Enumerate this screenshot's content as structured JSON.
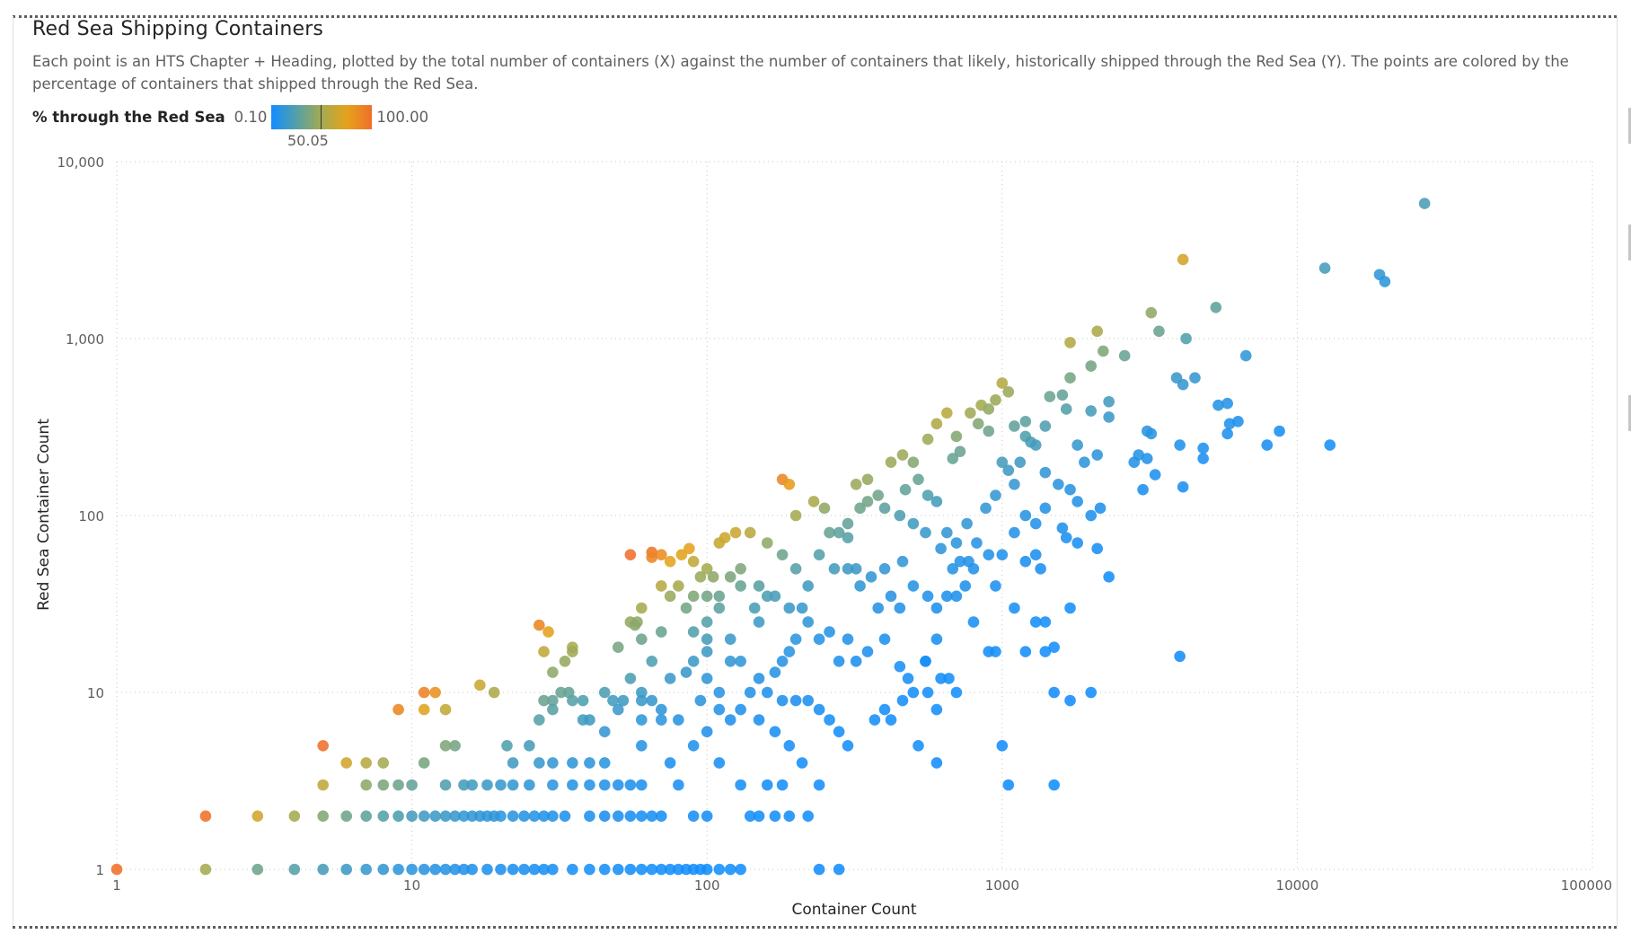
{
  "header": {
    "title": "Red Sea Shipping Containers",
    "subtitle": "Each point is an HTS Chapter + Heading, plotted by the total number of containers (X) against the number of containers that likely, historically shipped through the Red Sea (Y). The points are colored by the percentage of containers that shipped through the Red Sea."
  },
  "legend": {
    "title": "% through the Red Sea",
    "min": "0.10",
    "max": "100.00",
    "mid": "50.05"
  },
  "colors": {
    "low": "#118dff",
    "mid": "#a4ab50",
    "high": "#ef6f2a"
  },
  "chart_data": {
    "type": "scatter",
    "title": "Red Sea Shipping Containers",
    "xlabel": "Container Count",
    "ylabel": "Red Sea Container Count",
    "xscale": "log",
    "yscale": "log",
    "xlim": [
      1,
      100000
    ],
    "ylim": [
      1,
      10000
    ],
    "x_ticks": [
      {
        "value": 1,
        "label": "1"
      },
      {
        "value": 10,
        "label": "10"
      },
      {
        "value": 100,
        "label": "100"
      },
      {
        "value": 1000,
        "label": "1000"
      },
      {
        "value": 10000,
        "label": "10000"
      },
      {
        "value": 100000,
        "label": "100000"
      }
    ],
    "y_ticks": [
      {
        "value": 1,
        "label": "1"
      },
      {
        "value": 10,
        "label": "10"
      },
      {
        "value": 100,
        "label": "100"
      },
      {
        "value": 1000,
        "label": "1,000"
      },
      {
        "value": 10000,
        "label": "10,000"
      }
    ],
    "grid": true,
    "color_measure": "% through the Red Sea",
    "color_range": [
      0.1,
      100
    ],
    "points": [
      [
        27000,
        5800
      ],
      [
        12400,
        2500
      ],
      [
        19000,
        2300
      ],
      [
        19800,
        2100
      ],
      [
        4100,
        2800
      ],
      [
        3200,
        1400
      ],
      [
        5300,
        1500
      ],
      [
        3400,
        1100
      ],
      [
        4200,
        1000
      ],
      [
        2100,
        1100
      ],
      [
        1700,
        950
      ],
      [
        2200,
        850
      ],
      [
        2600,
        800
      ],
      [
        2000,
        700
      ],
      [
        6700,
        800
      ],
      [
        3900,
        600
      ],
      [
        4500,
        600
      ],
      [
        4100,
        550
      ],
      [
        5400,
        420
      ],
      [
        5800,
        430
      ],
      [
        5900,
        330
      ],
      [
        6300,
        340
      ],
      [
        5800,
        290
      ],
      [
        7900,
        250
      ],
      [
        8700,
        300
      ],
      [
        12900,
        250
      ],
      [
        1000,
        560
      ],
      [
        1050,
        500
      ],
      [
        950,
        450
      ],
      [
        1700,
        600
      ],
      [
        1600,
        480
      ],
      [
        1450,
        470
      ],
      [
        900,
        400
      ],
      [
        830,
        330
      ],
      [
        1100,
        320
      ],
      [
        1200,
        340
      ],
      [
        1650,
        400
      ],
      [
        2300,
        440
      ],
      [
        2000,
        390
      ],
      [
        2300,
        360
      ],
      [
        1200,
        280
      ],
      [
        1250,
        260
      ],
      [
        1300,
        250
      ],
      [
        1400,
        320
      ],
      [
        3100,
        300
      ],
      [
        3200,
        290
      ],
      [
        2800,
        200
      ],
      [
        2900,
        220
      ],
      [
        3100,
        210
      ],
      [
        3300,
        170
      ],
      [
        4000,
        250
      ],
      [
        4800,
        240
      ],
      [
        4800,
        210
      ],
      [
        3000,
        140
      ],
      [
        4100,
        145
      ],
      [
        1000,
        200
      ],
      [
        1050,
        180
      ],
      [
        1100,
        150
      ],
      [
        1150,
        200
      ],
      [
        1400,
        175
      ],
      [
        1550,
        150
      ],
      [
        1800,
        250
      ],
      [
        1900,
        200
      ],
      [
        2100,
        220
      ],
      [
        1700,
        140
      ],
      [
        1800,
        120
      ],
      [
        2000,
        100
      ],
      [
        2150,
        110
      ],
      [
        1100,
        80
      ],
      [
        1200,
        100
      ],
      [
        1300,
        90
      ],
      [
        1400,
        110
      ],
      [
        1600,
        85
      ],
      [
        1650,
        75
      ],
      [
        1800,
        70
      ],
      [
        2100,
        65
      ],
      [
        2300,
        45
      ],
      [
        4000,
        16
      ],
      [
        1000,
        60
      ],
      [
        1200,
        55
      ],
      [
        1300,
        60
      ],
      [
        1350,
        50
      ],
      [
        950,
        40
      ],
      [
        1100,
        30
      ],
      [
        1300,
        25
      ],
      [
        1400,
        25
      ],
      [
        1500,
        18
      ],
      [
        1700,
        30
      ],
      [
        1200,
        17
      ],
      [
        1400,
        17
      ],
      [
        800,
        25
      ],
      [
        600,
        20
      ],
      [
        900,
        17
      ],
      [
        950,
        17
      ],
      [
        550,
        15
      ],
      [
        1500,
        10
      ],
      [
        1700,
        9
      ],
      [
        2000,
        10
      ],
      [
        1000,
        5
      ],
      [
        1050,
        3
      ],
      [
        1500,
        3
      ],
      [
        650,
        380
      ],
      [
        600,
        330
      ],
      [
        700,
        280
      ],
      [
        780,
        380
      ],
      [
        850,
        420
      ],
      [
        900,
        300
      ],
      [
        560,
        270
      ],
      [
        720,
        230
      ],
      [
        680,
        210
      ],
      [
        460,
        220
      ],
      [
        420,
        200
      ],
      [
        500,
        200
      ],
      [
        350,
        160
      ],
      [
        320,
        150
      ],
      [
        380,
        130
      ],
      [
        470,
        140
      ],
      [
        520,
        160
      ],
      [
        560,
        130
      ],
      [
        400,
        110
      ],
      [
        450,
        100
      ],
      [
        300,
        90
      ],
      [
        330,
        110
      ],
      [
        350,
        120
      ],
      [
        500,
        90
      ],
      [
        600,
        120
      ],
      [
        650,
        80
      ],
      [
        700,
        70
      ],
      [
        550,
        80
      ],
      [
        620,
        65
      ],
      [
        760,
        90
      ],
      [
        820,
        70
      ],
      [
        900,
        60
      ],
      [
        880,
        110
      ],
      [
        950,
        130
      ],
      [
        680,
        50
      ],
      [
        720,
        55
      ],
      [
        770,
        55
      ],
      [
        800,
        50
      ],
      [
        460,
        55
      ],
      [
        400,
        50
      ],
      [
        360,
        45
      ],
      [
        300,
        50
      ],
      [
        330,
        40
      ],
      [
        380,
        30
      ],
      [
        420,
        35
      ],
      [
        450,
        30
      ],
      [
        500,
        40
      ],
      [
        560,
        35
      ],
      [
        600,
        30
      ],
      [
        650,
        35
      ],
      [
        700,
        35
      ],
      [
        750,
        40
      ],
      [
        300,
        20
      ],
      [
        350,
        17
      ],
      [
        280,
        15
      ],
      [
        320,
        15
      ],
      [
        400,
        20
      ],
      [
        450,
        14
      ],
      [
        480,
        12
      ],
      [
        550,
        15
      ],
      [
        620,
        12
      ],
      [
        660,
        12
      ],
      [
        700,
        10
      ],
      [
        400,
        8
      ],
      [
        460,
        9
      ],
      [
        500,
        10
      ],
      [
        560,
        10
      ],
      [
        600,
        8
      ],
      [
        370,
        7
      ],
      [
        420,
        7
      ],
      [
        520,
        5
      ],
      [
        600,
        4
      ],
      [
        180,
        160
      ],
      [
        190,
        150
      ],
      [
        200,
        100
      ],
      [
        230,
        120
      ],
      [
        250,
        110
      ],
      [
        260,
        80
      ],
      [
        280,
        80
      ],
      [
        300,
        75
      ],
      [
        320,
        50
      ],
      [
        270,
        50
      ],
      [
        240,
        60
      ],
      [
        220,
        40
      ],
      [
        200,
        50
      ],
      [
        180,
        60
      ],
      [
        160,
        70
      ],
      [
        140,
        80
      ],
      [
        130,
        50
      ],
      [
        150,
        40
      ],
      [
        170,
        35
      ],
      [
        190,
        30
      ],
      [
        210,
        30
      ],
      [
        220,
        25
      ],
      [
        240,
        20
      ],
      [
        260,
        22
      ],
      [
        200,
        20
      ],
      [
        190,
        17
      ],
      [
        180,
        15
      ],
      [
        170,
        13
      ],
      [
        150,
        12
      ],
      [
        140,
        10
      ],
      [
        160,
        10
      ],
      [
        180,
        9
      ],
      [
        200,
        9
      ],
      [
        220,
        9
      ],
      [
        240,
        8
      ],
      [
        260,
        7
      ],
      [
        280,
        6
      ],
      [
        300,
        5
      ],
      [
        130,
        8
      ],
      [
        150,
        7
      ],
      [
        170,
        6
      ],
      [
        190,
        5
      ],
      [
        210,
        4
      ],
      [
        240,
        3
      ],
      [
        180,
        3
      ],
      [
        160,
        3
      ],
      [
        140,
        2
      ],
      [
        150,
        2
      ],
      [
        170,
        2
      ],
      [
        190,
        2
      ],
      [
        220,
        2
      ],
      [
        240,
        1
      ],
      [
        280,
        1
      ],
      [
        150,
        25
      ],
      [
        145,
        30
      ],
      [
        160,
        35
      ],
      [
        130,
        40
      ],
      [
        120,
        45
      ],
      [
        110,
        35
      ],
      [
        110,
        30
      ],
      [
        100,
        25
      ],
      [
        90,
        22
      ],
      [
        100,
        20
      ],
      [
        120,
        20
      ],
      [
        130,
        15
      ],
      [
        120,
        15
      ],
      [
        100,
        17
      ],
      [
        90,
        15
      ],
      [
        85,
        13
      ],
      [
        100,
        12
      ],
      [
        110,
        10
      ],
      [
        95,
        9
      ],
      [
        110,
        8
      ],
      [
        120,
        7
      ],
      [
        100,
        6
      ],
      [
        80,
        7
      ],
      [
        70,
        8
      ],
      [
        65,
        9
      ],
      [
        60,
        10
      ],
      [
        90,
        5
      ],
      [
        110,
        4
      ],
      [
        130,
        3
      ],
      [
        80,
        3
      ],
      [
        70,
        2
      ],
      [
        90,
        2
      ],
      [
        100,
        2
      ],
      [
        110,
        1
      ],
      [
        120,
        1
      ],
      [
        130,
        1
      ],
      [
        50,
        18
      ],
      [
        60,
        20
      ],
      [
        55,
        25
      ],
      [
        70,
        22
      ],
      [
        65,
        15
      ],
      [
        75,
        12
      ],
      [
        55,
        12
      ],
      [
        45,
        10
      ],
      [
        48,
        9
      ],
      [
        52,
        9
      ],
      [
        60,
        9
      ],
      [
        50,
        8
      ],
      [
        60,
        7
      ],
      [
        70,
        7
      ],
      [
        40,
        7
      ],
      [
        45,
        6
      ],
      [
        60,
        5
      ],
      [
        75,
        4
      ],
      [
        45,
        4
      ],
      [
        40,
        4
      ],
      [
        50,
        3
      ],
      [
        55,
        3
      ],
      [
        60,
        3
      ],
      [
        45,
        3
      ],
      [
        40,
        3
      ],
      [
        35,
        3
      ],
      [
        30,
        3
      ],
      [
        25,
        3
      ],
      [
        40,
        2
      ],
      [
        45,
        2
      ],
      [
        50,
        2
      ],
      [
        55,
        2
      ],
      [
        60,
        2
      ],
      [
        65,
        2
      ],
      [
        50,
        1
      ],
      [
        55,
        1
      ],
      [
        60,
        1
      ],
      [
        65,
        1
      ],
      [
        70,
        1
      ],
      [
        75,
        1
      ],
      [
        80,
        1
      ],
      [
        85,
        1
      ],
      [
        90,
        1
      ],
      [
        95,
        1
      ],
      [
        100,
        1
      ],
      [
        65,
        62
      ],
      [
        70,
        60
      ],
      [
        82,
        60
      ],
      [
        87,
        65
      ],
      [
        90,
        55
      ],
      [
        100,
        50
      ],
      [
        105,
        45
      ],
      [
        110,
        70
      ],
      [
        115,
        75
      ],
      [
        125,
        80
      ],
      [
        95,
        45
      ],
      [
        80,
        40
      ],
      [
        75,
        35
      ],
      [
        70,
        40
      ],
      [
        90,
        35
      ],
      [
        100,
        35
      ],
      [
        85,
        30
      ],
      [
        60,
        30
      ],
      [
        58,
        25
      ],
      [
        57,
        24
      ],
      [
        55,
        60
      ],
      [
        65,
        58
      ],
      [
        75,
        55
      ],
      [
        35,
        18
      ],
      [
        33,
        15
      ],
      [
        35,
        17
      ],
      [
        30,
        13
      ],
      [
        28,
        17
      ],
      [
        29,
        22
      ],
      [
        27,
        24
      ],
      [
        34,
        10
      ],
      [
        32,
        10
      ],
      [
        30,
        9
      ],
      [
        28,
        9
      ],
      [
        27,
        7
      ],
      [
        30,
        8
      ],
      [
        35,
        9
      ],
      [
        38,
        9
      ],
      [
        38,
        7
      ],
      [
        25,
        5
      ],
      [
        21,
        5
      ],
      [
        14,
        5
      ],
      [
        13,
        5
      ],
      [
        22,
        4
      ],
      [
        27,
        4
      ],
      [
        30,
        4
      ],
      [
        35,
        4
      ],
      [
        18,
        3
      ],
      [
        16,
        3
      ],
      [
        15,
        3
      ],
      [
        13,
        3
      ],
      [
        20,
        3
      ],
      [
        22,
        3
      ],
      [
        11,
        10
      ],
      [
        12,
        10
      ],
      [
        11,
        8
      ],
      [
        13,
        8
      ],
      [
        17,
        11
      ],
      [
        19,
        10
      ],
      [
        9,
        8
      ],
      [
        5,
        5
      ],
      [
        6,
        4
      ],
      [
        7,
        4
      ],
      [
        8,
        4
      ],
      [
        11,
        4
      ],
      [
        5,
        3
      ],
      [
        7,
        3
      ],
      [
        8,
        3
      ],
      [
        9,
        3
      ],
      [
        10,
        3
      ],
      [
        2,
        2
      ],
      [
        3,
        2
      ],
      [
        4,
        2
      ],
      [
        5,
        2
      ],
      [
        6,
        2
      ],
      [
        7,
        2
      ],
      [
        8,
        2
      ],
      [
        9,
        2
      ],
      [
        10,
        2
      ],
      [
        11,
        2
      ],
      [
        12,
        2
      ],
      [
        13,
        2
      ],
      [
        14,
        2
      ],
      [
        15,
        2
      ],
      [
        16,
        2
      ],
      [
        17,
        2
      ],
      [
        18,
        2
      ],
      [
        19,
        2
      ],
      [
        20,
        2
      ],
      [
        22,
        2
      ],
      [
        24,
        2
      ],
      [
        26,
        2
      ],
      [
        28,
        2
      ],
      [
        30,
        2
      ],
      [
        33,
        2
      ],
      [
        1,
        1
      ],
      [
        2,
        1
      ],
      [
        3,
        1
      ],
      [
        4,
        1
      ],
      [
        5,
        1
      ],
      [
        6,
        1
      ],
      [
        7,
        1
      ],
      [
        8,
        1
      ],
      [
        9,
        1
      ],
      [
        10,
        1
      ],
      [
        11,
        1
      ],
      [
        12,
        1
      ],
      [
        13,
        1
      ],
      [
        14,
        1
      ],
      [
        15,
        1
      ],
      [
        16,
        1
      ],
      [
        18,
        1
      ],
      [
        20,
        1
      ],
      [
        22,
        1
      ],
      [
        24,
        1
      ],
      [
        26,
        1
      ],
      [
        28,
        1
      ],
      [
        30,
        1
      ],
      [
        35,
        1
      ],
      [
        40,
        1
      ],
      [
        45,
        1
      ]
    ]
  }
}
